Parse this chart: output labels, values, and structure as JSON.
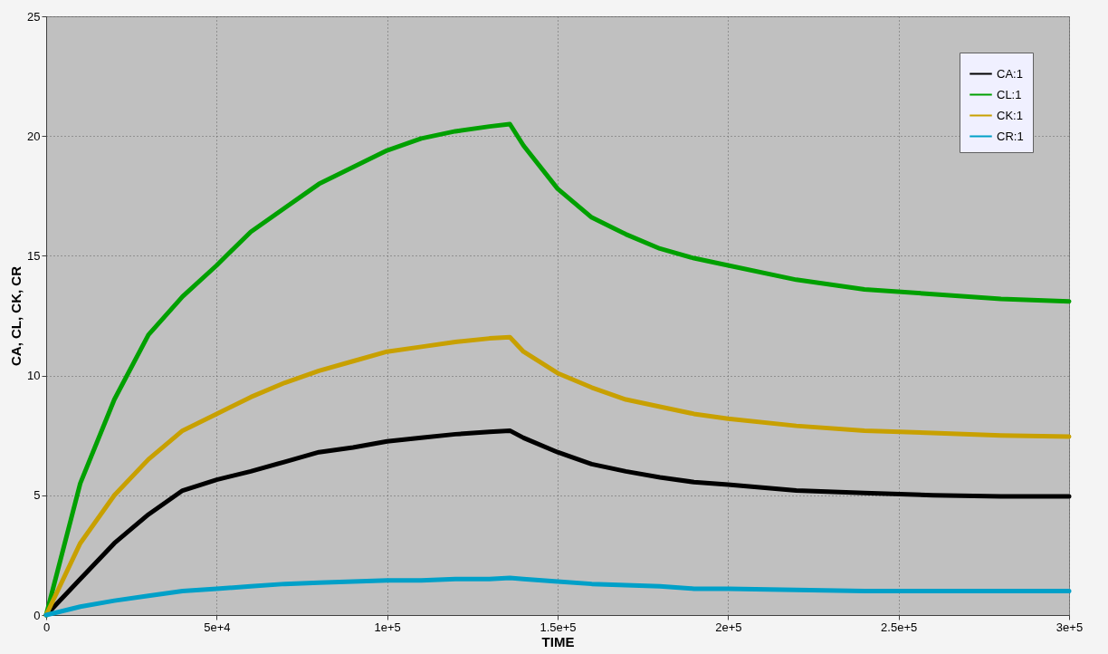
{
  "chart_data": {
    "type": "line",
    "xlabel": "TIME",
    "ylabel": "CA, CL, CK, CR",
    "x": [
      0,
      10000,
      20000,
      30000,
      40000,
      50000,
      60000,
      70000,
      80000,
      90000,
      100000,
      110000,
      120000,
      130000,
      136000,
      140000,
      150000,
      160000,
      170000,
      180000,
      190000,
      200000,
      220000,
      240000,
      260000,
      280000,
      300000
    ],
    "series": [
      {
        "name": "CA:1",
        "color": "#000000",
        "values": [
          0,
          1.5,
          3.0,
          4.2,
          5.2,
          5.65,
          6.0,
          6.4,
          6.8,
          7.0,
          7.25,
          7.4,
          7.55,
          7.65,
          7.7,
          7.4,
          6.8,
          6.3,
          6.0,
          5.75,
          5.55,
          5.45,
          5.2,
          5.1,
          5.0,
          4.95,
          4.95
        ]
      },
      {
        "name": "CL:1",
        "color": "#00a000",
        "values": [
          0,
          5.5,
          9.0,
          11.7,
          13.3,
          14.6,
          16.0,
          17.0,
          18.0,
          18.7,
          19.4,
          19.9,
          20.2,
          20.4,
          20.5,
          19.6,
          17.8,
          16.6,
          15.9,
          15.3,
          14.9,
          14.6,
          14.0,
          13.6,
          13.4,
          13.2,
          13.1
        ]
      },
      {
        "name": "CK:1",
        "color": "#c8a000",
        "values": [
          0,
          3.0,
          5.0,
          6.5,
          7.7,
          8.4,
          9.1,
          9.7,
          10.2,
          10.6,
          11.0,
          11.2,
          11.4,
          11.55,
          11.6,
          11.0,
          10.1,
          9.5,
          9.0,
          8.7,
          8.4,
          8.2,
          7.9,
          7.7,
          7.6,
          7.5,
          7.45
        ]
      },
      {
        "name": "CR:1",
        "color": "#00a0c8",
        "values": [
          0,
          0.35,
          0.6,
          0.8,
          1.0,
          1.1,
          1.2,
          1.3,
          1.35,
          1.4,
          1.45,
          1.45,
          1.5,
          1.5,
          1.55,
          1.5,
          1.4,
          1.3,
          1.25,
          1.2,
          1.1,
          1.1,
          1.05,
          1.0,
          1.0,
          1.0,
          1.0
        ]
      }
    ],
    "xlim": [
      0,
      300000
    ],
    "xticks": [
      0,
      {
        "value": 50000,
        "label": "5e+4"
      },
      {
        "value": 100000,
        "label": "1e+5"
      },
      {
        "value": 150000,
        "label": "1.5e+5"
      },
      {
        "value": 200000,
        "label": "2e+5"
      },
      {
        "value": 250000,
        "label": "2.5e+5"
      },
      {
        "value": 300000,
        "label": "3e+5"
      }
    ],
    "ylim": [
      0,
      25
    ],
    "yticks": [
      0,
      5,
      10,
      15,
      20,
      25
    ],
    "grid": true,
    "legend": "top right",
    "line_style": "solid"
  }
}
